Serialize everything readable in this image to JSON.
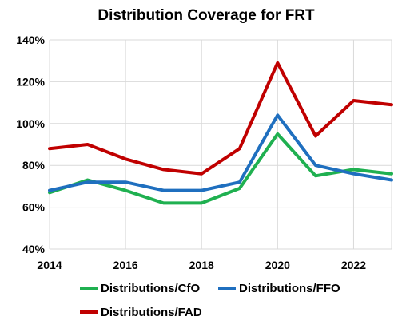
{
  "chart_data": {
    "type": "line",
    "title": "Distribution Coverage for FRT",
    "xlabel": "",
    "ylabel": "",
    "x": [
      2014,
      2015,
      2016,
      2017,
      2018,
      2019,
      2020,
      2021,
      2022,
      2023
    ],
    "xlim": [
      2014,
      2023
    ],
    "ylim": [
      0.4,
      1.4
    ],
    "x_ticks": [
      "2014",
      "2016",
      "2018",
      "2020",
      "2022"
    ],
    "y_ticks": [
      "40%",
      "60%",
      "80%",
      "100%",
      "120%",
      "140%"
    ],
    "grid": true,
    "legend_position": "bottom",
    "series": [
      {
        "name": "Distributions/CfO",
        "color": "#1fb050",
        "values": [
          0.67,
          0.73,
          0.68,
          0.62,
          0.62,
          0.69,
          0.95,
          0.75,
          0.78,
          0.76
        ]
      },
      {
        "name": "Distributions/FFO",
        "color": "#1f6fbf",
        "values": [
          0.68,
          0.72,
          0.72,
          0.68,
          0.68,
          0.72,
          1.04,
          0.8,
          0.76,
          0.73
        ]
      },
      {
        "name": "Distributions/FAD",
        "color": "#c00000",
        "values": [
          0.88,
          0.9,
          0.83,
          0.78,
          0.76,
          0.88,
          1.29,
          0.94,
          1.11,
          1.09
        ]
      }
    ]
  }
}
